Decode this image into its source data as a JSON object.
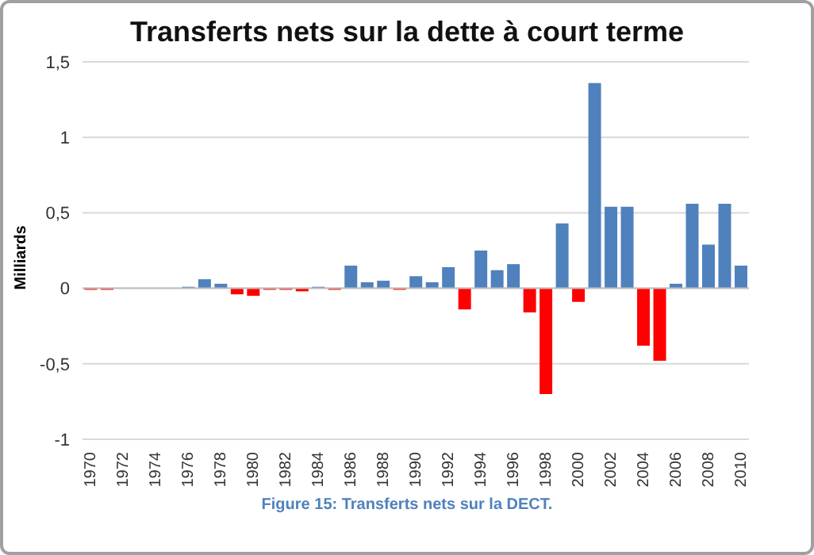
{
  "chart_data": {
    "type": "bar",
    "title": "Transferts nets sur la dette à court terme",
    "ylabel": "Milliards",
    "categories": [
      "1970",
      null,
      "1972",
      null,
      "1974",
      null,
      "1976",
      null,
      "1978",
      null,
      "1980",
      null,
      "1982",
      null,
      "1984",
      null,
      "1986",
      null,
      "1988",
      null,
      "1990",
      null,
      "1992",
      null,
      "1994",
      null,
      "1996",
      null,
      "1998",
      null,
      "2000",
      null,
      "2002",
      null,
      "2004",
      null,
      "2006",
      null,
      "2008",
      null,
      "2010"
    ],
    "values": [
      -0.01,
      -0.01,
      0,
      0,
      0,
      0,
      0.01,
      0.06,
      0.03,
      -0.04,
      -0.05,
      -0.01,
      -0.01,
      -0.02,
      0.01,
      -0.01,
      0.15,
      0.04,
      0.05,
      -0.01,
      0.08,
      0.04,
      0.14,
      -0.14,
      0.25,
      0.12,
      0.16,
      -0.16,
      -0.7,
      0.43,
      -0.09,
      1.36,
      0.54,
      0.54,
      -0.38,
      -0.48,
      0.03,
      0.56,
      0.29,
      0.56,
      0.15
    ],
    "colors": [
      "#ff0000",
      "#ff0000",
      "#4f81bd",
      "#4f81bd",
      "#4f81bd",
      "#4f81bd",
      "#4f81bd",
      "#4f81bd",
      "#4f81bd",
      "#ff0000",
      "#ff0000",
      "#ff0000",
      "#ff0000",
      "#ff0000",
      "#4f81bd",
      "#ff0000",
      "#4f81bd",
      "#4f81bd",
      "#4f81bd",
      "#ff0000",
      "#4f81bd",
      "#4f81bd",
      "#4f81bd",
      "#ff0000",
      "#4f81bd",
      "#4f81bd",
      "#4f81bd",
      "#ff0000",
      "#ff0000",
      "#4f81bd",
      "#ff0000",
      "#4f81bd",
      "#4f81bd",
      "#4f81bd",
      "#ff0000",
      "#ff0000",
      "#4f81bd",
      "#4f81bd",
      "#4f81bd",
      "#4f81bd",
      "#4f81bd"
    ],
    "ylim": [
      -1,
      1.5
    ],
    "yticks": [
      {
        "value": -1,
        "label": "-1"
      },
      {
        "value": -0.5,
        "label": "-0,5"
      },
      {
        "value": 0,
        "label": "0"
      },
      {
        "value": 0.5,
        "label": "0,5"
      },
      {
        "value": 1,
        "label": "1"
      },
      {
        "value": 1.5,
        "label": "1,5"
      }
    ],
    "grid": "y",
    "annotations": [
      "Figure 15: Transferts nets sur la DECT."
    ]
  }
}
